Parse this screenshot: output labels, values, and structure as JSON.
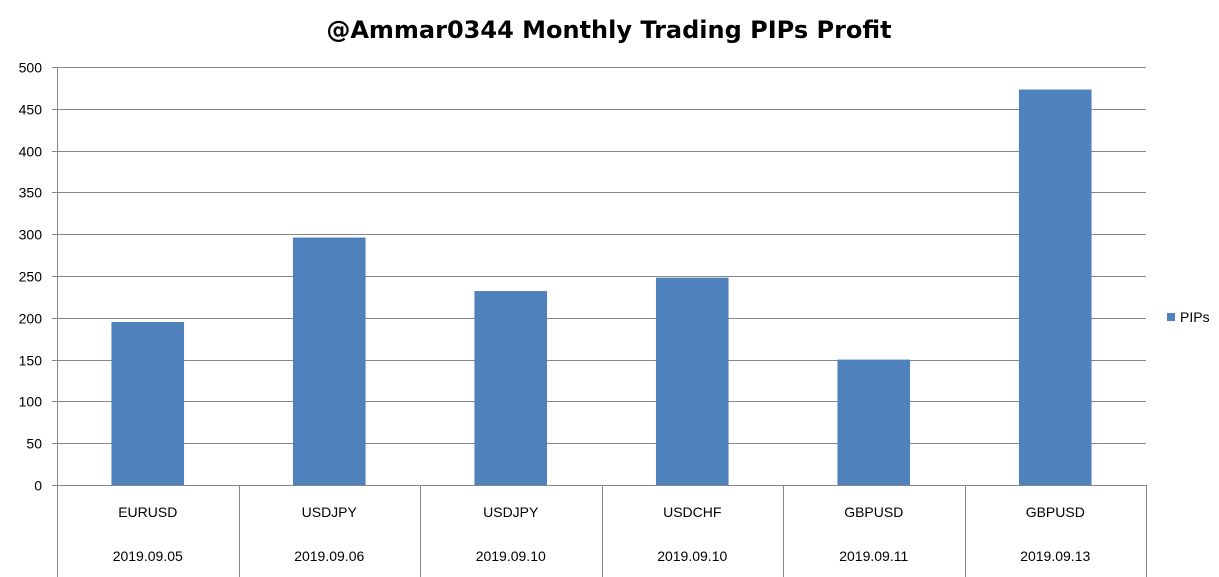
{
  "chart_data": {
    "type": "bar",
    "title": "@Ammar0344 Monthly Trading PIPs Profit",
    "xlabel": "",
    "ylabel": "",
    "ylim": [
      0,
      500
    ],
    "yticks": [
      0,
      50,
      100,
      150,
      200,
      250,
      300,
      350,
      400,
      450,
      500
    ],
    "grid": true,
    "legend_position": "right",
    "categories": [
      {
        "pair": "EURUSD",
        "date": "2019.09.05"
      },
      {
        "pair": "USDJPY",
        "date": "2019.09.06"
      },
      {
        "pair": "USDJPY",
        "date": "2019.09.10"
      },
      {
        "pair": "USDCHF",
        "date": "2019.09.10"
      },
      {
        "pair": "GBPUSD",
        "date": "2019.09.11"
      },
      {
        "pair": "GBPUSD",
        "date": "2019.09.13"
      }
    ],
    "series": [
      {
        "name": "PIPs",
        "color": "#4F81BD",
        "values": [
          195,
          296,
          232,
          248,
          150,
          473
        ]
      }
    ]
  }
}
